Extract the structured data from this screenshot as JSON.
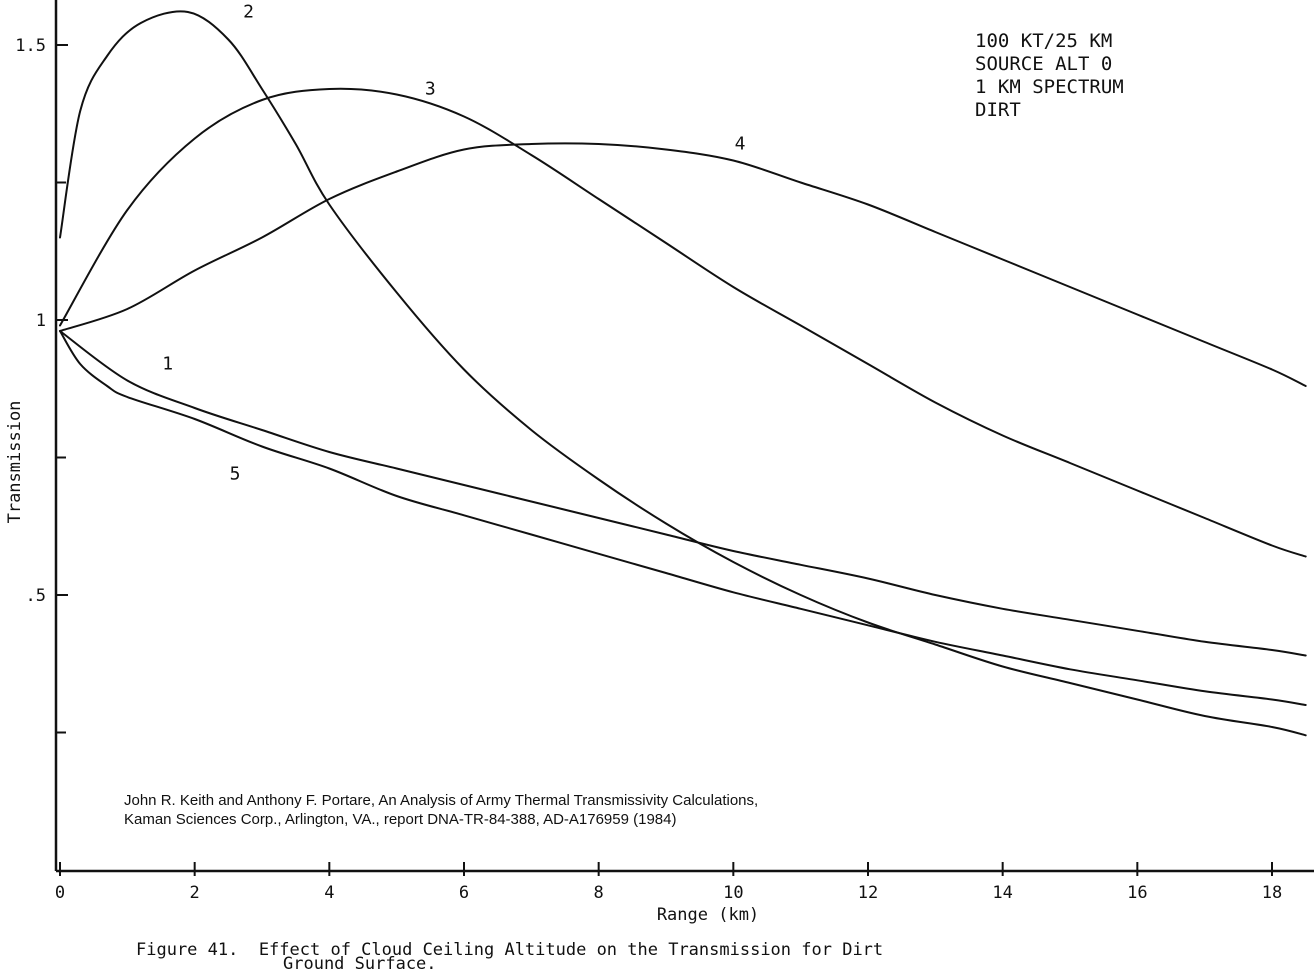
{
  "chart_data": {
    "type": "line",
    "xlabel": "Range (km)",
    "ylabel": "Transmission",
    "xlim": [
      0,
      18.5
    ],
    "ylim": [
      0,
      1.6
    ],
    "x_ticks": [
      "0",
      "2",
      "4",
      "6",
      "8",
      "10",
      "12",
      "14",
      "16",
      "18"
    ],
    "y_ticks": [
      "1.5",
      "1",
      ".5"
    ],
    "y_ticks_values": [
      1.5,
      1.0,
      0.5
    ],
    "legend_block": [
      "100 KT/25 KM",
      "SOURCE ALT 0",
      "1 KM SPECTRUM",
      "DIRT"
    ],
    "citation": [
      "John R. Keith and Anthony F. Portare, An Analysis of Army Thermal Transmissivity Calculations,",
      "Kaman Sciences Corp., Arlington, VA., report DNA-TR-84-388, AD-A176959 (1984)"
    ],
    "caption_line1": "Figure 41.  Effect of Cloud Ceiling Altitude on the Transmission for Dirt",
    "caption_line2": "Ground Surface.",
    "series": [
      {
        "name": "1",
        "label_x": 1.6,
        "label_y": 0.91,
        "x": [
          0,
          1,
          2,
          3,
          4,
          5,
          6,
          7,
          8,
          9,
          10,
          11,
          12,
          13,
          14,
          15,
          16,
          17,
          18,
          18.5
        ],
        "y": [
          0.98,
          0.89,
          0.84,
          0.8,
          0.76,
          0.73,
          0.7,
          0.67,
          0.64,
          0.61,
          0.58,
          0.555,
          0.53,
          0.5,
          0.475,
          0.455,
          0.435,
          0.415,
          0.4,
          0.39
        ]
      },
      {
        "name": "2",
        "label_x": 2.8,
        "label_y": 1.55,
        "x": [
          0,
          0.3,
          0.7,
          1.2,
          1.9,
          2.5,
          3.0,
          3.5,
          4.0,
          5.0,
          6.0,
          7.0,
          8.0,
          9.0,
          10.0,
          11.0,
          12.0,
          13.0,
          14.0,
          15.0,
          16.0,
          17.0,
          18.0,
          18.5
        ],
        "y": [
          1.15,
          1.38,
          1.48,
          1.54,
          1.56,
          1.51,
          1.42,
          1.32,
          1.21,
          1.05,
          0.91,
          0.8,
          0.71,
          0.63,
          0.56,
          0.5,
          0.45,
          0.41,
          0.37,
          0.34,
          0.31,
          0.28,
          0.26,
          0.245
        ]
      },
      {
        "name": "3",
        "label_x": 5.5,
        "label_y": 1.41,
        "x": [
          0,
          1,
          2,
          3,
          4,
          5,
          6,
          7,
          8,
          9,
          10,
          11,
          12,
          13,
          14,
          15,
          16,
          17,
          18,
          18.5
        ],
        "y": [
          0.99,
          1.2,
          1.33,
          1.4,
          1.42,
          1.41,
          1.37,
          1.3,
          1.22,
          1.14,
          1.06,
          0.99,
          0.92,
          0.85,
          0.79,
          0.74,
          0.69,
          0.64,
          0.59,
          0.57
        ]
      },
      {
        "name": "4",
        "label_x": 10.1,
        "label_y": 1.31,
        "x": [
          0,
          1,
          2,
          3,
          4,
          5,
          6,
          7,
          8,
          9,
          10,
          11,
          12,
          13,
          14,
          15,
          16,
          17,
          18,
          18.5
        ],
        "y": [
          0.98,
          1.02,
          1.09,
          1.15,
          1.22,
          1.27,
          1.31,
          1.32,
          1.32,
          1.31,
          1.29,
          1.25,
          1.21,
          1.16,
          1.11,
          1.06,
          1.01,
          0.96,
          0.91,
          0.88
        ]
      },
      {
        "name": "5",
        "label_x": 2.6,
        "label_y": 0.71,
        "x": [
          0,
          0.3,
          0.7,
          1,
          2,
          3,
          4,
          5,
          6,
          7,
          8,
          9,
          10,
          11,
          12,
          13,
          14,
          15,
          16,
          17,
          18,
          18.5
        ],
        "y": [
          0.98,
          0.92,
          0.88,
          0.86,
          0.82,
          0.77,
          0.73,
          0.68,
          0.645,
          0.61,
          0.575,
          0.54,
          0.505,
          0.475,
          0.445,
          0.415,
          0.39,
          0.365,
          0.345,
          0.325,
          0.31,
          0.3
        ]
      }
    ]
  }
}
